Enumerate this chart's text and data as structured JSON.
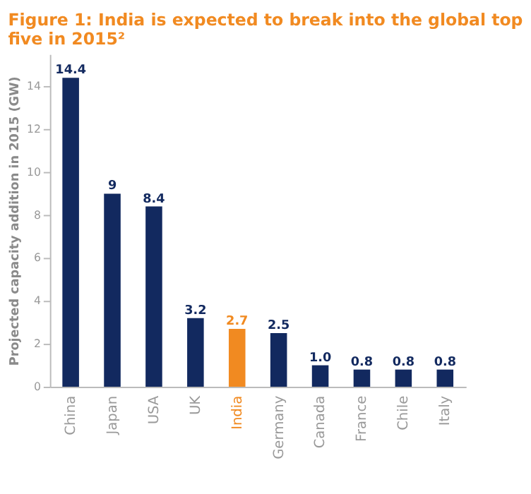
{
  "chart_data": {
    "type": "bar",
    "title": "Figure 1: India is expected to break into the global top five in 2015²",
    "ylabel": "Projected capacity addition in 2015 (GW)",
    "categories": [
      "China",
      "Japan",
      "USA",
      "UK",
      "India",
      "Germany",
      "Canada",
      "France",
      "Chile",
      "Italy"
    ],
    "values": [
      14.4,
      9,
      8.4,
      3.2,
      2.7,
      2.5,
      1.0,
      0.8,
      0.8,
      0.8
    ],
    "value_labels": [
      "14.4",
      "9",
      "8.4",
      "3.2",
      "2.7",
      "2.5",
      "1.0",
      "0.8",
      "0.8",
      "0.8"
    ],
    "colors": [
      "#12295f",
      "#12295f",
      "#12295f",
      "#12295f",
      "#f18a21",
      "#12295f",
      "#12295f",
      "#12295f",
      "#12295f",
      "#12295f"
    ],
    "ylim": [
      0,
      15.5
    ],
    "yticks": [
      0,
      2,
      4,
      6,
      8,
      10,
      12,
      14
    ],
    "grid": false
  }
}
